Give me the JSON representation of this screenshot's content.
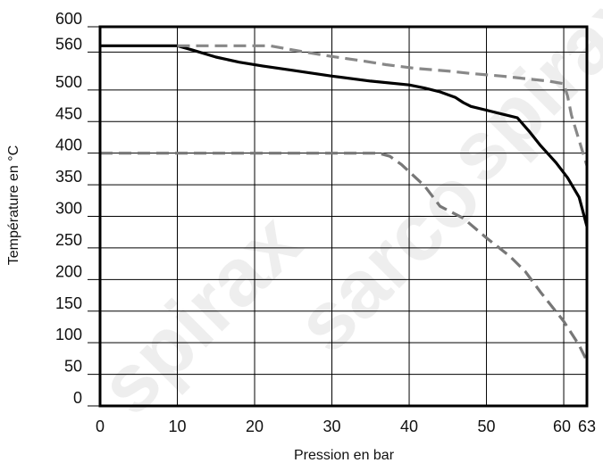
{
  "chart_data": {
    "type": "line",
    "xlabel": "Pression en bar",
    "ylabel": "Température en °C",
    "xlim": [
      0,
      63
    ],
    "ylim": [
      0,
      600
    ],
    "x_ticks": [
      {
        "value": 0,
        "label": "0"
      },
      {
        "value": 10,
        "label": "10"
      },
      {
        "value": 20,
        "label": "20"
      },
      {
        "value": 30,
        "label": "30"
      },
      {
        "value": 40,
        "label": "40"
      },
      {
        "value": 50,
        "label": "50"
      },
      {
        "value": 60,
        "label": "60"
      },
      {
        "value": 63,
        "label": "63"
      }
    ],
    "y_ticks": [
      {
        "value": 0,
        "label": "0"
      },
      {
        "value": 50,
        "label": "50"
      },
      {
        "value": 100,
        "label": "100"
      },
      {
        "value": 150,
        "label": "150"
      },
      {
        "value": 200,
        "label": "200"
      },
      {
        "value": 250,
        "label": "250"
      },
      {
        "value": 300,
        "label": "300"
      },
      {
        "value": 350,
        "label": "350"
      },
      {
        "value": 400,
        "label": "400"
      },
      {
        "value": 450,
        "label": "450"
      },
      {
        "value": 500,
        "label": "500"
      },
      {
        "value": 560,
        "label": "560"
      },
      {
        "value": 600,
        "label": "600"
      }
    ],
    "grid": true,
    "series": [
      {
        "style": "solid",
        "color": "#000000",
        "points": [
          [
            0,
            570
          ],
          [
            10,
            570
          ],
          [
            12,
            563
          ],
          [
            15,
            552
          ],
          [
            18,
            544
          ],
          [
            21,
            538
          ],
          [
            25,
            531
          ],
          [
            30,
            522
          ],
          [
            35,
            514
          ],
          [
            40,
            508
          ],
          [
            42,
            503
          ],
          [
            44,
            497
          ],
          [
            46,
            488
          ],
          [
            47,
            480
          ],
          [
            48,
            474
          ],
          [
            50,
            468
          ],
          [
            52,
            462
          ],
          [
            54,
            456
          ],
          [
            55.5,
            435
          ],
          [
            57,
            412
          ],
          [
            59,
            385
          ],
          [
            60.5,
            361
          ],
          [
            62,
            330
          ],
          [
            63,
            284
          ]
        ]
      },
      {
        "style": "dashed",
        "color": "#888888",
        "points": [
          [
            10,
            570
          ],
          [
            22,
            570
          ],
          [
            26,
            561
          ],
          [
            30,
            553
          ],
          [
            34,
            546
          ],
          [
            37,
            540
          ],
          [
            41,
            534
          ],
          [
            45,
            530
          ],
          [
            48,
            526
          ],
          [
            52,
            522
          ],
          [
            55,
            518
          ],
          [
            58,
            514
          ],
          [
            60,
            510
          ],
          [
            60.5,
            490
          ],
          [
            61,
            460
          ],
          [
            62,
            420
          ],
          [
            63,
            380
          ]
        ]
      },
      {
        "style": "dashed",
        "color": "#777777",
        "points": [
          [
            0,
            400
          ],
          [
            36,
            400
          ],
          [
            37.5,
            395
          ],
          [
            39,
            382
          ],
          [
            42,
            348
          ],
          [
            44,
            316
          ],
          [
            47,
            297
          ],
          [
            50,
            266
          ],
          [
            53,
            237
          ],
          [
            55,
            213
          ],
          [
            57,
            180
          ],
          [
            60,
            134
          ],
          [
            62,
            96
          ],
          [
            63,
            71
          ]
        ]
      }
    ]
  }
}
